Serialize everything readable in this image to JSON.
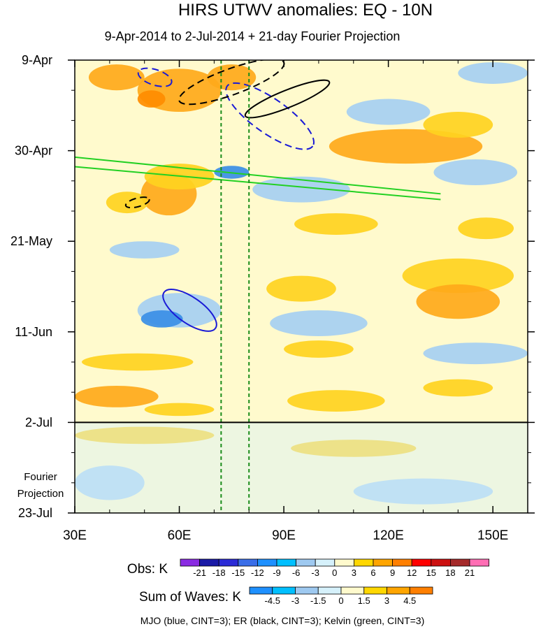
{
  "chart_data": {
    "type": "heatmap",
    "title": "HIRS UTWV anomalies: EQ - 10N",
    "subtitle": "9-Apr-2014 to 2-Jul-2014 + 21-day Fourier Projection",
    "x_axis": {
      "range": [
        30,
        160
      ],
      "ticks": [
        {
          "value": 30,
          "label": "30E"
        },
        {
          "value": 60,
          "label": "60E"
        },
        {
          "value": 90,
          "label": "90E"
        },
        {
          "value": 120,
          "label": "120E"
        },
        {
          "value": 150,
          "label": "150E"
        }
      ]
    },
    "y_axis": {
      "range_days": [
        0,
        105
      ],
      "ticks": [
        {
          "day": 0,
          "label": "9-Apr"
        },
        {
          "day": 21,
          "label": "30-Apr"
        },
        {
          "day": 42,
          "label": "21-May"
        },
        {
          "day": 63,
          "label": "11-Jun"
        },
        {
          "day": 84,
          "label": "2-Jul"
        },
        {
          "day": 105,
          "label": "23-Jul"
        }
      ]
    },
    "projection_label": [
      "Fourier",
      "Projection"
    ],
    "projection_start_day": 84,
    "reference_lines_lon": [
      72,
      80
    ],
    "obs_legend": {
      "label": "Obs: K",
      "levels": [
        "-21",
        "-18",
        "-15",
        "-12",
        "-9",
        "-6",
        "-3",
        "0",
        "3",
        "6",
        "9",
        "12",
        "15",
        "18",
        "21"
      ],
      "colors": [
        "#8a2be2",
        "#1a1aa6",
        "#2b2bd6",
        "#3a6ee8",
        "#1e90ff",
        "#00bfff",
        "#9ec9f0",
        "#d6f1fb",
        "#fffacd",
        "#ffd700",
        "#ffa500",
        "#ff7f00",
        "#ff0000",
        "#cc1010",
        "#a52a2a",
        "#ff6eb4"
      ]
    },
    "waves_legend": {
      "label": "Sum of Waves: K",
      "levels": [
        "-4.5",
        "-3",
        "-1.5",
        "0",
        "1.5",
        "3",
        "4.5"
      ],
      "colors": [
        "#1e90ff",
        "#00bfff",
        "#9ec9f0",
        "#d6f1fb",
        "#fffacd",
        "#ffd700",
        "#ffa500",
        "#ff7f00"
      ]
    },
    "footer": "MJO (blue, CINT=3); ER (black, CINT=3); Kelvin (green, CINT=3)",
    "anomaly_regions": [
      {
        "lon": 42,
        "day": 4,
        "rx": 8,
        "ry": 3,
        "level": "orange"
      },
      {
        "lon": 60,
        "day": 7,
        "rx": 12,
        "ry": 5,
        "level": "orange"
      },
      {
        "lon": 52,
        "day": 9,
        "rx": 4,
        "ry": 2,
        "level": "dark-orange"
      },
      {
        "lon": 75,
        "day": 4,
        "rx": 7,
        "ry": 3,
        "level": "orange"
      },
      {
        "lon": 150,
        "day": 3,
        "rx": 10,
        "ry": 2.5,
        "level": "light-blue"
      },
      {
        "lon": 125,
        "day": 20,
        "rx": 22,
        "ry": 4,
        "level": "orange"
      },
      {
        "lon": 140,
        "day": 15,
        "rx": 10,
        "ry": 3,
        "level": "yellow"
      },
      {
        "lon": 120,
        "day": 12,
        "rx": 12,
        "ry": 3,
        "level": "light-blue"
      },
      {
        "lon": 57,
        "day": 31,
        "rx": 8,
        "ry": 5,
        "level": "orange"
      },
      {
        "lon": 45,
        "day": 33,
        "rx": 6,
        "ry": 2.5,
        "level": "yellow"
      },
      {
        "lon": 60,
        "day": 27,
        "rx": 10,
        "ry": 3,
        "level": "yellow"
      },
      {
        "lon": 75,
        "day": 26,
        "rx": 5,
        "ry": 1.5,
        "level": "blue"
      },
      {
        "lon": 95,
        "day": 30,
        "rx": 14,
        "ry": 3,
        "level": "light-blue"
      },
      {
        "lon": 145,
        "day": 26,
        "rx": 12,
        "ry": 3,
        "level": "light-blue"
      },
      {
        "lon": 148,
        "day": 39,
        "rx": 8,
        "ry": 2.5,
        "level": "yellow"
      },
      {
        "lon": 105,
        "day": 38,
        "rx": 12,
        "ry": 2.5,
        "level": "yellow"
      },
      {
        "lon": 50,
        "day": 44,
        "rx": 10,
        "ry": 2,
        "level": "light-blue"
      },
      {
        "lon": 140,
        "day": 50,
        "rx": 16,
        "ry": 4,
        "level": "yellow"
      },
      {
        "lon": 140,
        "day": 56,
        "rx": 12,
        "ry": 4,
        "level": "orange"
      },
      {
        "lon": 95,
        "day": 53,
        "rx": 10,
        "ry": 3,
        "level": "yellow"
      },
      {
        "lon": 60,
        "day": 58,
        "rx": 12,
        "ry": 4,
        "level": "light-blue"
      },
      {
        "lon": 55,
        "day": 60,
        "rx": 6,
        "ry": 2,
        "level": "blue"
      },
      {
        "lon": 100,
        "day": 61,
        "rx": 14,
        "ry": 3,
        "level": "light-blue"
      },
      {
        "lon": 48,
        "day": 70,
        "rx": 16,
        "ry": 2,
        "level": "yellow"
      },
      {
        "lon": 145,
        "day": 68,
        "rx": 15,
        "ry": 2.5,
        "level": "light-blue"
      },
      {
        "lon": 100,
        "day": 67,
        "rx": 10,
        "ry": 2,
        "level": "yellow"
      },
      {
        "lon": 42,
        "day": 78,
        "rx": 12,
        "ry": 2.5,
        "level": "orange"
      },
      {
        "lon": 105,
        "day": 79,
        "rx": 14,
        "ry": 2.5,
        "level": "yellow"
      },
      {
        "lon": 140,
        "day": 76,
        "rx": 10,
        "ry": 2,
        "level": "yellow"
      },
      {
        "lon": 60,
        "day": 81,
        "rx": 10,
        "ry": 1.5,
        "level": "yellow"
      },
      {
        "lon": 50,
        "day": 87,
        "rx": 20,
        "ry": 2,
        "level": "yellow"
      },
      {
        "lon": 110,
        "day": 90,
        "rx": 18,
        "ry": 2,
        "level": "yellow"
      },
      {
        "lon": 40,
        "day": 98,
        "rx": 10,
        "ry": 4,
        "level": "light-blue"
      },
      {
        "lon": 130,
        "day": 100,
        "rx": 20,
        "ry": 3,
        "level": "light-blue"
      }
    ],
    "contours": [
      {
        "wave": "MJO",
        "color": "#1a1ad6",
        "dash": true,
        "lon": 53,
        "day": 4,
        "rx": 5,
        "ry": 1.8,
        "angle": 18
      },
      {
        "wave": "MJO",
        "color": "#1a1ad6",
        "dash": true,
        "lon": 86,
        "day": 13,
        "rx": 15,
        "ry": 4,
        "angle": 35
      },
      {
        "wave": "MJO",
        "color": "#1a1ad6",
        "dash": false,
        "lon": 63,
        "day": 58,
        "rx": 9,
        "ry": 3,
        "angle": 35
      },
      {
        "wave": "ER",
        "color": "#000000",
        "dash": true,
        "lon": 75,
        "day": 5,
        "rx": 16,
        "ry": 3,
        "angle": -20
      },
      {
        "wave": "ER",
        "color": "#000000",
        "dash": false,
        "lon": 91,
        "day": 9,
        "rx": 13,
        "ry": 2,
        "angle": -22
      },
      {
        "wave": "ER",
        "color": "#000000",
        "dash": true,
        "lon": 48,
        "day": 33,
        "rx": 3.5,
        "ry": 1,
        "angle": -15
      }
    ],
    "kelvin_band": {
      "color": "#22d022",
      "start_lon": 30,
      "start_day": 22.5,
      "end_lon": 135,
      "end_day": 31
    }
  }
}
